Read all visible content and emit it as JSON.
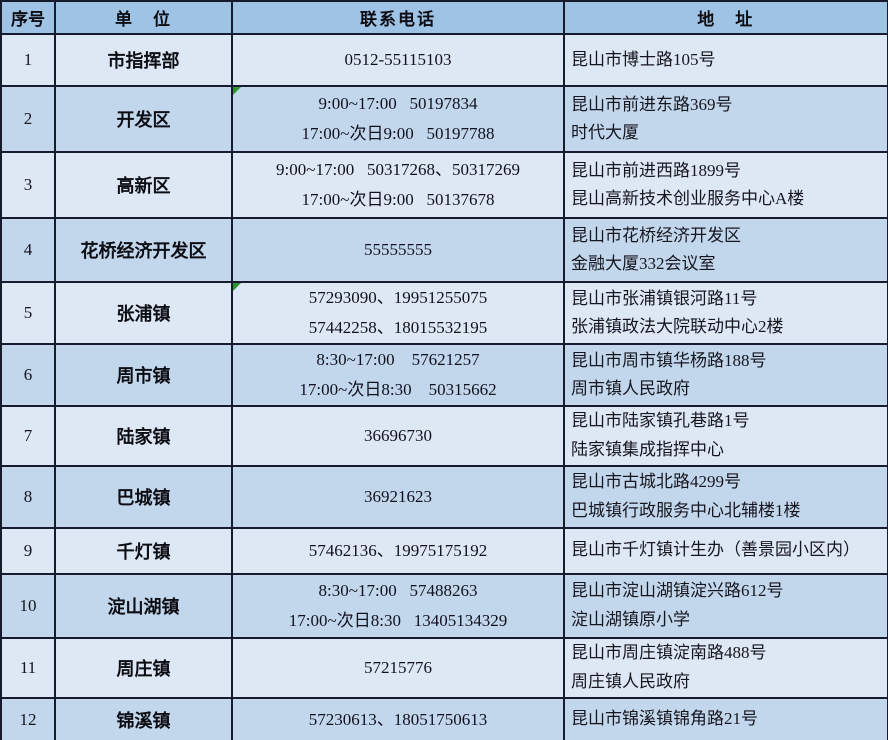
{
  "header": {
    "cols": [
      "序号",
      "单　位",
      "联系电话",
      "地　址"
    ]
  },
  "rows": [
    {
      "no": "1",
      "unit": "市指挥部",
      "phone": [
        "0512-55115103"
      ],
      "address": [
        "昆山市博士路105号"
      ],
      "marker": false
    },
    {
      "no": "2",
      "unit": "开发区",
      "phone": [
        "9:00~17:00   50197834",
        "17:00~次日9:00   50197788"
      ],
      "address": [
        "昆山市前进东路369号",
        "时代大厦"
      ],
      "marker": true
    },
    {
      "no": "3",
      "unit": "高新区",
      "phone": [
        "9:00~17:00   50317268、50317269",
        "17:00~次日9:00   50137678"
      ],
      "address": [
        "昆山市前进西路1899号",
        "昆山高新技术创业服务中心A楼"
      ],
      "marker": false
    },
    {
      "no": "4",
      "unit": "花桥经济开发区",
      "phone": [
        "55555555"
      ],
      "address": [
        "昆山市花桥经济开发区",
        "金融大厦332会议室"
      ],
      "marker": false
    },
    {
      "no": "5",
      "unit": "张浦镇",
      "phone": [
        "57293090、19951255075",
        "57442258、18015532195"
      ],
      "address": [
        "昆山市张浦镇银河路11号",
        "张浦镇政法大院联动中心2楼"
      ],
      "marker": true
    },
    {
      "no": "6",
      "unit": "周市镇",
      "phone": [
        "8:30~17:00    57621257",
        "17:00~次日8:30    50315662"
      ],
      "address": [
        "昆山市周市镇华杨路188号",
        "周市镇人民政府"
      ],
      "marker": false
    },
    {
      "no": "7",
      "unit": "陆家镇",
      "phone": [
        "36696730"
      ],
      "address": [
        "昆山市陆家镇孔巷路1号",
        "陆家镇集成指挥中心"
      ],
      "marker": false
    },
    {
      "no": "8",
      "unit": "巴城镇",
      "phone": [
        "36921623"
      ],
      "address": [
        "昆山市古城北路4299号",
        "巴城镇行政服务中心北辅楼1楼"
      ],
      "marker": false
    },
    {
      "no": "9",
      "unit": "千灯镇",
      "phone": [
        "57462136、19975175192"
      ],
      "address": [
        "昆山市千灯镇计生办（善景园小区内）"
      ],
      "marker": false
    },
    {
      "no": "10",
      "unit": "淀山湖镇",
      "phone": [
        "8:30~17:00   57488263",
        "17:00~次日8:30   13405134329"
      ],
      "address": [
        "昆山市淀山湖镇淀兴路612号",
        "淀山湖镇原小学"
      ],
      "marker": false
    },
    {
      "no": "11",
      "unit": "周庄镇",
      "phone": [
        "57215776"
      ],
      "address": [
        "昆山市周庄镇淀南路488号",
        "周庄镇人民政府"
      ],
      "marker": false
    },
    {
      "no": "12",
      "unit": "锦溪镇",
      "phone": [
        "57230613、18051750613"
      ],
      "address": [
        "昆山市锦溪镇锦角路21号"
      ],
      "marker": false
    }
  ],
  "icons": {
    "error_marker": "green-corner-triangle"
  },
  "colors": {
    "header_bg": "#9fc3e4",
    "row_odd_bg": "#dde8f4",
    "row_even_bg": "#c2d7ec",
    "border": "#161c2d",
    "text": "#11111e",
    "marker_green": "#2f9331"
  }
}
